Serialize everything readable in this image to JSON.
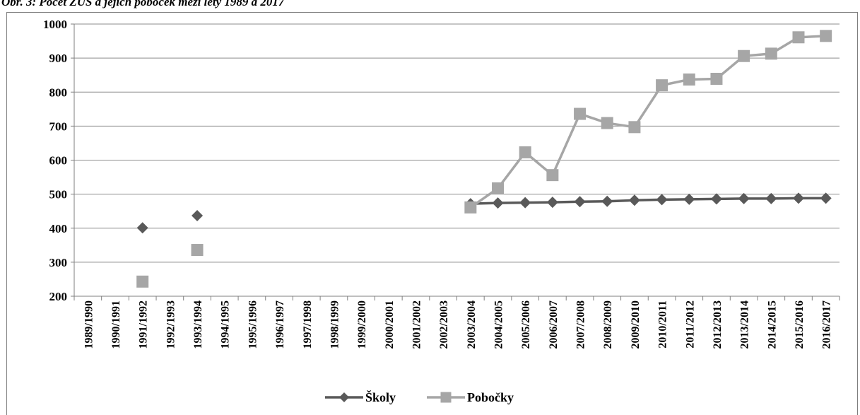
{
  "figure_title": "Obr. 3: Počet ZUŠ a jejich poboček mezi lety 1989 a 2017",
  "chart_data": {
    "type": "line",
    "categories": [
      "1989/1990",
      "1990/1991",
      "1991/1992",
      "1992/1993",
      "1993/1994",
      "1994/1995",
      "1995/1996",
      "1996/1997",
      "1997/1998",
      "1998/1999",
      "1999/2000",
      "2000/2001",
      "2001/2002",
      "2002/2003",
      "2003/2004",
      "2004/2005",
      "2005/2006",
      "2006/2007",
      "2007/2008",
      "2008/2009",
      "2009/2010",
      "2010/2011",
      "2011/2012",
      "2012/2013",
      "2013/2014",
      "2014/2015",
      "2015/2016",
      "2016/2017"
    ],
    "series": [
      {
        "name": "Školy",
        "color": "#595959",
        "marker": "diamond",
        "values": [
          null,
          null,
          401,
          null,
          437,
          null,
          null,
          null,
          null,
          null,
          null,
          null,
          null,
          null,
          472,
          474,
          475,
          476,
          478,
          479,
          482,
          484,
          485,
          486,
          487,
          487,
          488,
          488
        ]
      },
      {
        "name": "Pobočky",
        "color": "#a6a6a6",
        "marker": "square",
        "values": [
          null,
          null,
          243,
          null,
          336,
          null,
          null,
          null,
          null,
          null,
          null,
          null,
          null,
          null,
          461,
          517,
          623,
          556,
          736,
          709,
          697,
          820,
          837,
          839,
          906,
          913,
          961,
          965
        ]
      }
    ],
    "ylim": [
      200,
      1000
    ],
    "yticks": [
      "200",
      "300",
      "400",
      "500",
      "600",
      "700",
      "800",
      "900",
      "1000"
    ],
    "grid": true,
    "legend": "bottom"
  }
}
